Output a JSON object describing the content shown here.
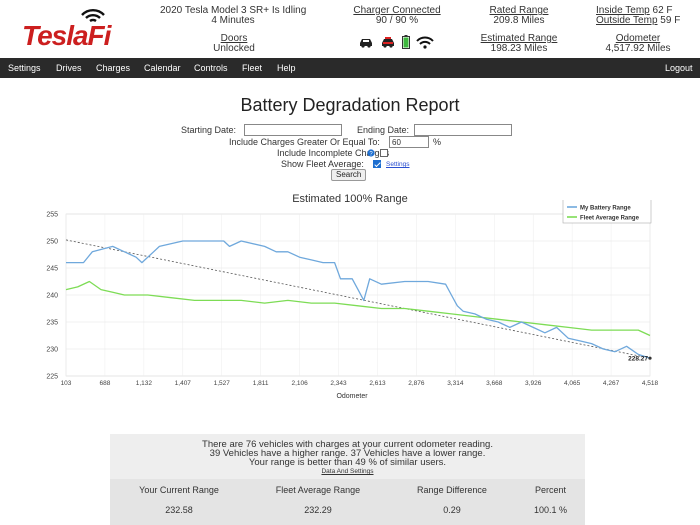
{
  "header": {
    "logo_text": "TeslaFi",
    "vehicle": {
      "line1": "2020 Tesla Model 3 SR+ Is Idling",
      "line2": "4 Minutes"
    },
    "charger": {
      "label": "Charger Connected",
      "value": "90 / 90 %"
    },
    "rated_range": {
      "label": "Rated Range",
      "value": "209.8 Miles"
    },
    "inside_temp": {
      "label": "Inside Temp",
      "value": "62 F"
    },
    "outside_temp": {
      "label": "Outside Temp",
      "value": "59 F"
    },
    "doors": {
      "label": "Doors",
      "value": "Unlocked"
    },
    "estimated_range": {
      "label": "Estimated Range",
      "value": "198.23 Miles"
    },
    "odometer": {
      "label": "Odometer",
      "value": "4,517.92 Miles"
    },
    "status_icons": [
      "car-icon",
      "car-red-icon",
      "battery-icon",
      "wifi-icon"
    ]
  },
  "nav": {
    "items": [
      "Settings",
      "Drives",
      "Charges",
      "Calendar",
      "Controls",
      "Fleet",
      "Help"
    ],
    "logout": "Logout"
  },
  "page": {
    "title": "Battery Degradation Report",
    "form": {
      "start_label": "Starting Date:",
      "start_value": "",
      "end_label": "Ending Date:",
      "end_value": "",
      "charges_label": "Include Charges Greater Or Equal To:",
      "charges_value": "60",
      "charges_unit": "%",
      "incomplete_label": "Include Incomplete Charges",
      "incomplete_checked": false,
      "fleet_label": "Show Fleet Average:",
      "fleet_checked": true,
      "settings_link": "Settings",
      "search_button": "Search"
    }
  },
  "chart_data": {
    "type": "line",
    "title": "Estimated 100% Range",
    "xlabel": "Odometer",
    "ylabel": "",
    "xlim": [
      103,
      4518
    ],
    "ylim": [
      225,
      255
    ],
    "x_ticks": [
      103,
      688,
      1132,
      1407,
      1527,
      1811,
      2106,
      2343,
      2613,
      2876,
      3314,
      3668,
      3926,
      4065,
      4267,
      4518
    ],
    "y_ticks": [
      225,
      230,
      235,
      240,
      245,
      250,
      255
    ],
    "grid": true,
    "legend_position": "top-right",
    "end_label": "228.27",
    "colors": {
      "my": "#6fa8dc",
      "fleet": "#7ddc55",
      "trend": "#555555"
    },
    "series": [
      {
        "name": "My Battery Range",
        "points": [
          [
            0.0,
            246
          ],
          [
            0.03,
            246
          ],
          [
            0.045,
            248
          ],
          [
            0.08,
            249
          ],
          [
            0.1,
            248
          ],
          [
            0.12,
            247
          ],
          [
            0.13,
            246
          ],
          [
            0.15,
            248
          ],
          [
            0.16,
            249
          ],
          [
            0.2,
            250
          ],
          [
            0.27,
            250
          ],
          [
            0.28,
            249
          ],
          [
            0.3,
            250
          ],
          [
            0.34,
            249
          ],
          [
            0.36,
            248
          ],
          [
            0.38,
            248
          ],
          [
            0.4,
            247
          ],
          [
            0.42,
            246.5
          ],
          [
            0.44,
            246
          ],
          [
            0.46,
            246
          ],
          [
            0.47,
            243
          ],
          [
            0.49,
            243
          ],
          [
            0.5,
            241
          ],
          [
            0.51,
            239
          ],
          [
            0.52,
            243
          ],
          [
            0.54,
            242
          ],
          [
            0.58,
            242.5
          ],
          [
            0.62,
            242.5
          ],
          [
            0.65,
            242
          ],
          [
            0.66,
            240
          ],
          [
            0.67,
            238
          ],
          [
            0.68,
            237
          ],
          [
            0.7,
            236.5
          ],
          [
            0.72,
            235.5
          ],
          [
            0.74,
            235
          ],
          [
            0.76,
            234
          ],
          [
            0.78,
            235
          ],
          [
            0.8,
            234
          ],
          [
            0.82,
            233
          ],
          [
            0.84,
            234
          ],
          [
            0.86,
            232
          ],
          [
            0.88,
            231.5
          ],
          [
            0.9,
            231
          ],
          [
            0.92,
            230
          ],
          [
            0.94,
            229.5
          ],
          [
            0.96,
            230.5
          ],
          [
            0.98,
            229
          ],
          [
            1.0,
            228.3
          ]
        ]
      },
      {
        "name": "Fleet Average Range",
        "points": [
          [
            0.0,
            241
          ],
          [
            0.02,
            241.5
          ],
          [
            0.04,
            242.5
          ],
          [
            0.06,
            241
          ],
          [
            0.08,
            240.5
          ],
          [
            0.1,
            240
          ],
          [
            0.14,
            240
          ],
          [
            0.18,
            239.5
          ],
          [
            0.22,
            239
          ],
          [
            0.26,
            239
          ],
          [
            0.3,
            239
          ],
          [
            0.34,
            238.5
          ],
          [
            0.38,
            239
          ],
          [
            0.42,
            238.5
          ],
          [
            0.46,
            238.5
          ],
          [
            0.5,
            238
          ],
          [
            0.54,
            237.5
          ],
          [
            0.58,
            237.5
          ],
          [
            0.62,
            237
          ],
          [
            0.66,
            236.5
          ],
          [
            0.7,
            236
          ],
          [
            0.74,
            235.5
          ],
          [
            0.78,
            235
          ],
          [
            0.82,
            234.5
          ],
          [
            0.86,
            234
          ],
          [
            0.9,
            233.5
          ],
          [
            0.94,
            233.5
          ],
          [
            0.98,
            233.5
          ],
          [
            1.0,
            232.5
          ]
        ]
      }
    ],
    "trend": [
      [
        0.0,
        250.2
      ],
      [
        1.0,
        228.3
      ]
    ]
  },
  "summary": {
    "line1": "There are 76 vehicles with charges at your current odometer reading.",
    "line2": "39 Vehicles have a higher range. 37 Vehicles have a lower range.",
    "line3": "Your range is better than 49 % of similar users.",
    "link": "Data And Settings",
    "headers": [
      "Your Current Range",
      "Fleet Average Range",
      "Range Difference",
      "Percent"
    ],
    "values": [
      "232.58",
      "232.29",
      "0.29",
      "100.1 %"
    ]
  }
}
